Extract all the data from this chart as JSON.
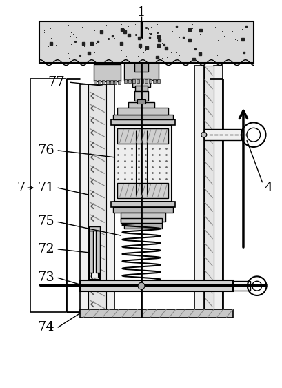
{
  "bg_color": "#ffffff",
  "lc": "#000000",
  "concrete_fill": "#d8d8d8",
  "light_fill": "#f0f0f0",
  "mid_fill": "#c8c8c8",
  "dark_fill": "#a0a0a0",
  "hatch_fill": "#e4e4e4"
}
